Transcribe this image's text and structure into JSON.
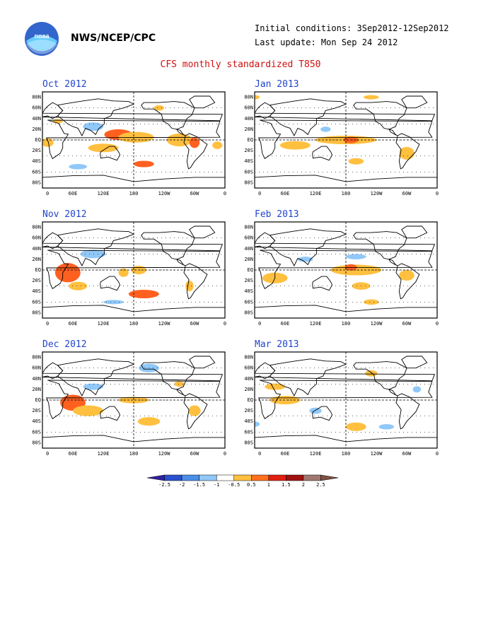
{
  "header": {
    "org": "NWS/NCEP/CPC",
    "initial_conditions": "Initial conditions: 3Sep2012-12Sep2012",
    "last_update": "Last update: Mon Sep 24 2012",
    "logo_text": "noaa"
  },
  "title": "CFS monthly standardized T850",
  "lat_labels": [
    "80N",
    "60N",
    "40N",
    "20N",
    "EQ",
    "20S",
    "40S",
    "60S",
    "80S"
  ],
  "lon_labels": [
    "0",
    "60E",
    "120E",
    "180",
    "120W",
    "60W",
    "0"
  ],
  "panels": [
    {
      "id": "oct",
      "title": "Oct 2012",
      "anomalies": [
        {
          "lon": 30,
          "lat": 35,
          "rx": 10,
          "ry": 4,
          "v": 1
        },
        {
          "lon": 100,
          "lat": 25,
          "rx": 20,
          "ry": 8,
          "v": -1
        },
        {
          "lon": 150,
          "lat": 10,
          "rx": 28,
          "ry": 10,
          "v": 1.5
        },
        {
          "lon": 185,
          "lat": 5,
          "rx": 35,
          "ry": 10,
          "v": 1
        },
        {
          "lon": 270,
          "lat": 0,
          "rx": 25,
          "ry": 12,
          "v": 1
        },
        {
          "lon": 300,
          "lat": -5,
          "rx": 10,
          "ry": 10,
          "v": 1.5
        },
        {
          "lon": 120,
          "lat": -15,
          "rx": 30,
          "ry": 8,
          "v": 1
        },
        {
          "lon": 70,
          "lat": -50,
          "rx": 18,
          "ry": 5,
          "v": -1
        },
        {
          "lon": 200,
          "lat": -45,
          "rx": 20,
          "ry": 6,
          "v": 1.5
        },
        {
          "lon": 10,
          "lat": -5,
          "rx": 12,
          "ry": 8,
          "v": 1
        },
        {
          "lon": 345,
          "lat": -10,
          "rx": 10,
          "ry": 7,
          "v": 1
        },
        {
          "lon": 230,
          "lat": 60,
          "rx": 10,
          "ry": 5,
          "v": 1
        }
      ]
    },
    {
      "id": "jan",
      "title": "Jan 2013",
      "anomalies": [
        {
          "lon": 180,
          "lat": 0,
          "rx": 60,
          "ry": 8,
          "v": 1
        },
        {
          "lon": 190,
          "lat": 0,
          "rx": 15,
          "ry": 6,
          "v": 1.5
        },
        {
          "lon": 80,
          "lat": -10,
          "rx": 30,
          "ry": 8,
          "v": 1
        },
        {
          "lon": 200,
          "lat": -40,
          "rx": 15,
          "ry": 6,
          "v": 1
        },
        {
          "lon": 300,
          "lat": -25,
          "rx": 15,
          "ry": 12,
          "v": 1
        },
        {
          "lon": 230,
          "lat": 80,
          "rx": 15,
          "ry": 4,
          "v": 1
        },
        {
          "lon": 0,
          "lat": 80,
          "rx": 10,
          "ry": 4,
          "v": 1
        },
        {
          "lon": 140,
          "lat": 20,
          "rx": 10,
          "ry": 5,
          "v": -1
        }
      ]
    },
    {
      "id": "nov",
      "title": "Nov 2012",
      "anomalies": [
        {
          "lon": 50,
          "lat": -5,
          "rx": 25,
          "ry": 18,
          "v": 1.5
        },
        {
          "lon": 70,
          "lat": -30,
          "rx": 18,
          "ry": 8,
          "v": 1
        },
        {
          "lon": 200,
          "lat": -45,
          "rx": 30,
          "ry": 8,
          "v": 1.5
        },
        {
          "lon": 190,
          "lat": 0,
          "rx": 15,
          "ry": 8,
          "v": 1
        },
        {
          "lon": 100,
          "lat": 30,
          "rx": 25,
          "ry": 8,
          "v": -1
        },
        {
          "lon": 160,
          "lat": -5,
          "rx": 10,
          "ry": 8,
          "v": 1
        },
        {
          "lon": 290,
          "lat": -30,
          "rx": 8,
          "ry": 10,
          "v": 1
        },
        {
          "lon": 140,
          "lat": -60,
          "rx": 20,
          "ry": 4,
          "v": -1
        }
      ]
    },
    {
      "id": "feb",
      "title": "Feb 2013",
      "anomalies": [
        {
          "lon": 200,
          "lat": 0,
          "rx": 50,
          "ry": 10,
          "v": 1
        },
        {
          "lon": 190,
          "lat": 5,
          "rx": 12,
          "ry": 6,
          "v": 1.5
        },
        {
          "lon": 40,
          "lat": -15,
          "rx": 25,
          "ry": 10,
          "v": 1
        },
        {
          "lon": 210,
          "lat": -30,
          "rx": 18,
          "ry": 7,
          "v": 1
        },
        {
          "lon": 200,
          "lat": 25,
          "rx": 20,
          "ry": 5,
          "v": -1
        },
        {
          "lon": 300,
          "lat": -10,
          "rx": 15,
          "ry": 10,
          "v": 1
        },
        {
          "lon": 230,
          "lat": -60,
          "rx": 15,
          "ry": 5,
          "v": 1
        },
        {
          "lon": 100,
          "lat": 20,
          "rx": 15,
          "ry": 5,
          "v": -1
        }
      ]
    },
    {
      "id": "dec",
      "title": "Dec 2012",
      "anomalies": [
        {
          "lon": 60,
          "lat": -5,
          "rx": 25,
          "ry": 15,
          "v": 1.5
        },
        {
          "lon": 90,
          "lat": -20,
          "rx": 30,
          "ry": 10,
          "v": 1
        },
        {
          "lon": 210,
          "lat": -40,
          "rx": 22,
          "ry": 8,
          "v": 1
        },
        {
          "lon": 180,
          "lat": 0,
          "rx": 30,
          "ry": 6,
          "v": 1
        },
        {
          "lon": 100,
          "lat": 25,
          "rx": 20,
          "ry": 6,
          "v": -1
        },
        {
          "lon": 210,
          "lat": 60,
          "rx": 20,
          "ry": 8,
          "v": -1
        },
        {
          "lon": 300,
          "lat": -20,
          "rx": 12,
          "ry": 10,
          "v": 1
        },
        {
          "lon": 270,
          "lat": 30,
          "rx": 10,
          "ry": 5,
          "v": 1
        }
      ]
    },
    {
      "id": "mar",
      "title": "Mar 2013",
      "anomalies": [
        {
          "lon": 60,
          "lat": 0,
          "rx": 30,
          "ry": 8,
          "v": 1
        },
        {
          "lon": 200,
          "lat": -50,
          "rx": 20,
          "ry": 8,
          "v": 1
        },
        {
          "lon": 120,
          "lat": -20,
          "rx": 12,
          "ry": 6,
          "v": -1
        },
        {
          "lon": 260,
          "lat": -50,
          "rx": 15,
          "ry": 5,
          "v": -1
        },
        {
          "lon": 230,
          "lat": 50,
          "rx": 12,
          "ry": 6,
          "v": 1
        },
        {
          "lon": 40,
          "lat": 25,
          "rx": 20,
          "ry": 6,
          "v": 1
        },
        {
          "lon": 320,
          "lat": 20,
          "rx": 8,
          "ry": 6,
          "v": -1
        },
        {
          "lon": 0,
          "lat": -45,
          "rx": 10,
          "ry": 5,
          "v": -1
        }
      ]
    }
  ],
  "colorbar": {
    "labels": [
      "-2.5",
      "-2",
      "-1.5",
      "-1",
      "-0.5",
      "0.5",
      "1",
      "1.5",
      "2",
      "2.5"
    ],
    "colors": [
      "#3020a0",
      "#2a50d0",
      "#4a90e8",
      "#90c8f8",
      "#ffffff",
      "#ffc040",
      "#ff7020",
      "#e02010",
      "#a01010",
      "#a07870",
      "#805040"
    ]
  },
  "anomaly_colors": {
    "-1": "#90c8f8",
    "-1.5": "#4a90e8",
    "1": "#ffc040",
    "1.5": "#ff6020"
  }
}
